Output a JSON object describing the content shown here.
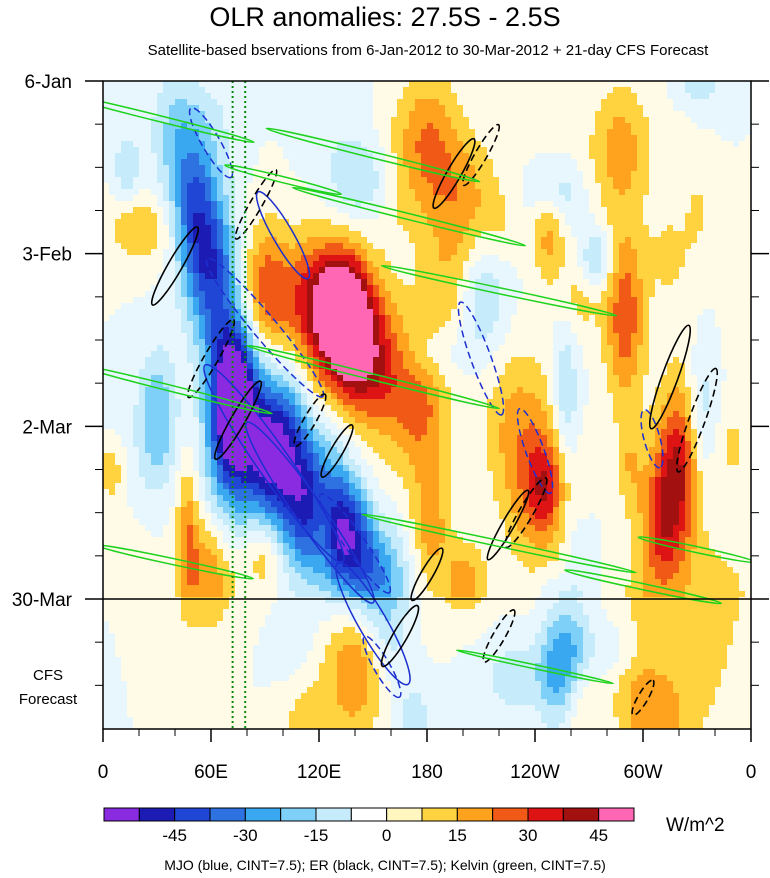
{
  "title": "OLR anomalies: 27.5S - 2.5S",
  "subtitle": "Satellite-based bservations from 6-Jan-2012 to 30-Mar-2012 + 21-day CFS Forecast",
  "footer": "MJO (blue, CINT=7.5); ER (black, CINT=7.5); Kelvin (green, CINT=7.5)",
  "forecast_label": [
    "CFS",
    "Forecast"
  ],
  "chart_data": {
    "type": "heatmap",
    "title": "OLR anomalies: 27.5S - 2.5S",
    "x_ticks": [
      {
        "lon": 0,
        "label": "0"
      },
      {
        "lon": 60,
        "label": "60E"
      },
      {
        "lon": 120,
        "label": "120E"
      },
      {
        "lon": 180,
        "label": "180"
      },
      {
        "lon": 240,
        "label": "120W"
      },
      {
        "lon": 300,
        "label": "60W"
      },
      {
        "lon": 360,
        "label": "0"
      }
    ],
    "xlim": [
      0,
      360
    ],
    "y_ticks": [
      {
        "day": 0,
        "label": "6-Jan"
      },
      {
        "day": 28,
        "label": "3-Feb"
      },
      {
        "day": 56,
        "label": "2-Mar"
      },
      {
        "day": 84,
        "label": "30-Mar"
      }
    ],
    "ylim_days": [
      0,
      105
    ],
    "forecast_start_day": 84,
    "colorbar": {
      "units": "W/m^2",
      "levels": [
        -52.5,
        -45,
        -37.5,
        -30,
        -22.5,
        -15,
        -7.5,
        0,
        7.5,
        15,
        22.5,
        30,
        37.5,
        45,
        52.5
      ],
      "labels": [
        {
          "value": -45,
          "label": "-45"
        },
        {
          "value": -30,
          "label": "-30"
        },
        {
          "value": -15,
          "label": "-15"
        },
        {
          "value": 0,
          "label": "0"
        },
        {
          "value": 15,
          "label": "15"
        },
        {
          "value": 30,
          "label": "30"
        },
        {
          "value": 45,
          "label": "45"
        }
      ],
      "colors": [
        "#8a2be2",
        "#1c1cb4",
        "#2046d6",
        "#2d72e0",
        "#3aa8f0",
        "#7fd0f8",
        "#c6ecfb",
        "#ffffff",
        "#fff6c0",
        "#ffd23f",
        "#ffa21d",
        "#f05a16",
        "#de1414",
        "#a21010",
        "#ff66b3"
      ]
    },
    "contours": {
      "mjo_color": "#1c2fd0",
      "er_color": "#000000",
      "kelvin_color": "#1ed21e",
      "vline_color": "#0a8a0a"
    }
  }
}
